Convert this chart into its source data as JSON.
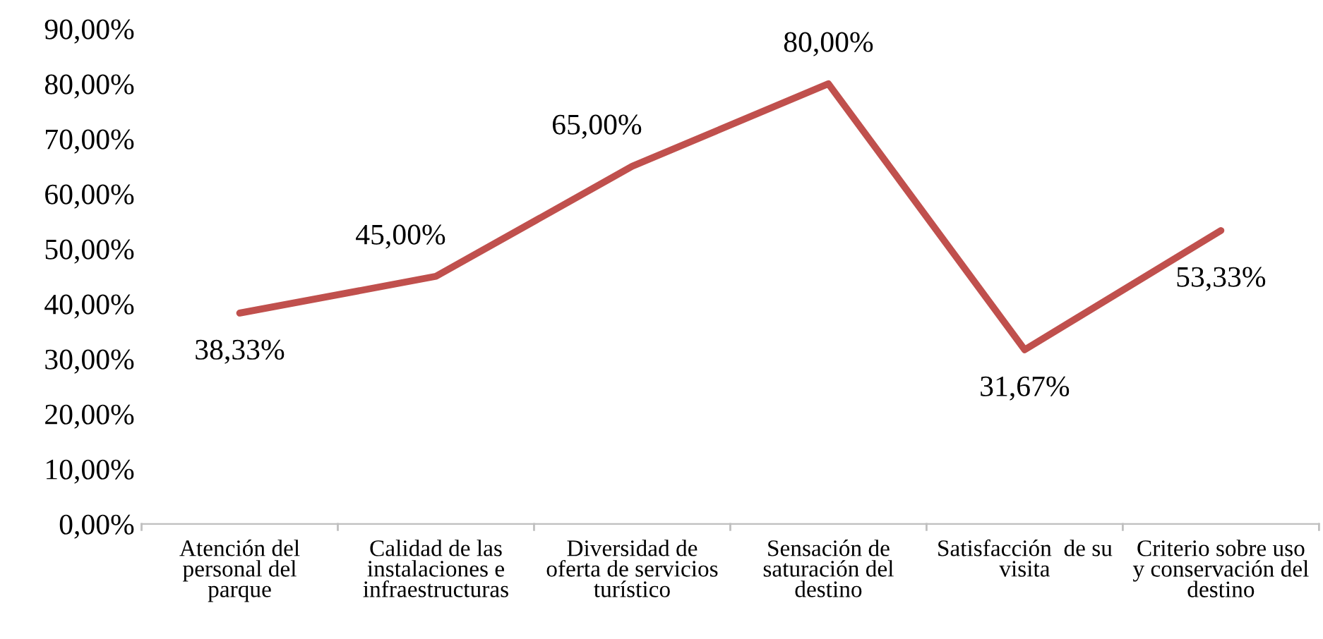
{
  "chart_data": {
    "type": "line",
    "categories": [
      "Atención del\npersonal del\nparque",
      "Calidad de las\ninstalaciones e\ninfraestructuras",
      "Diversidad de\noferta de servicios\nturístico",
      "Sensación de\nsaturación del\ndestino",
      "Satisfacción  de su\nvisita",
      "Criterio sobre uso\ny conservación del\ndestino"
    ],
    "series": [
      {
        "color": "#c0504d",
        "values": [
          38.33,
          45.0,
          65.0,
          80.0,
          31.67,
          53.33
        ],
        "value_labels": [
          "38,33%",
          "45,00%",
          "65,00%",
          "80,00%",
          "31,67%",
          "53,33%"
        ]
      }
    ],
    "ylim": [
      0,
      90
    ],
    "yticks": [
      {
        "value": 0,
        "label": "0,00%"
      },
      {
        "value": 10,
        "label": "10,00%"
      },
      {
        "value": 20,
        "label": "20,00%"
      },
      {
        "value": 30,
        "label": "30,00%"
      },
      {
        "value": 40,
        "label": "40,00%"
      },
      {
        "value": 50,
        "label": "50,00%"
      },
      {
        "value": 60,
        "label": "60,00%"
      },
      {
        "value": 70,
        "label": "70,00%"
      },
      {
        "value": 80,
        "label": "80,00%"
      },
      {
        "value": 90,
        "label": "90,00%"
      }
    ],
    "grid": false,
    "legend": false,
    "marker": "none",
    "line_style": "solid"
  }
}
